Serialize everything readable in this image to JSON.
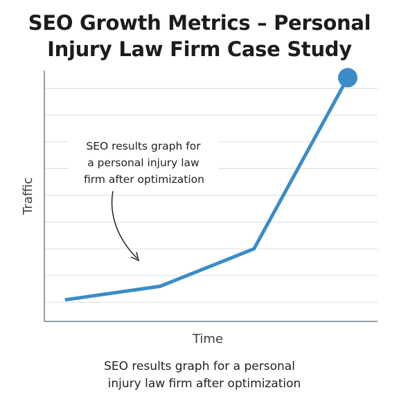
{
  "title_lines": [
    "SEO Growth Metrics – Personal",
    "Injury Law Firm Case Study"
  ],
  "caption_lines": [
    "SEO results graph for a personal",
    "injury law firm after optimization"
  ],
  "annotation_lines": [
    "SEO results graph for",
    "a personal injury law",
    "firm after optimization"
  ],
  "colors": {
    "line": "#3b8cc8",
    "axis": "#6f7d87",
    "grid": "#dde3e8",
    "text": "#1f1f1f"
  },
  "chart_data": {
    "type": "line",
    "xlabel": "Time",
    "ylabel": "Traffic",
    "ylim": [
      0,
      10
    ],
    "grid": true,
    "x": [
      0,
      1,
      2,
      3
    ],
    "values": [
      1.1,
      1.6,
      3.0,
      9.4
    ],
    "end_marker": true
  }
}
